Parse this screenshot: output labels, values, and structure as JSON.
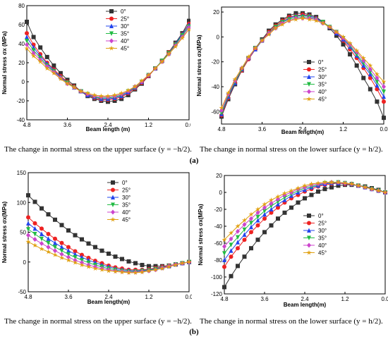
{
  "captions": {
    "row_a_left": "The change in normal stress on the upper surface (y = −h/2).",
    "row_a_right": "The change in normal stress on the lower surface (y = h/2).",
    "row_a_label": "(a)",
    "row_b_left": "The change in normal stress on the upper surface (y = −h/2).",
    "row_b_right": "The change in normal stress on the lower surface (y = h/2).",
    "row_b_label": "(b)"
  },
  "colors": {
    "0°": "#333333",
    "25°": "#ee2222",
    "30°": "#2244ee",
    "35°": "#22bb44",
    "40°": "#cc44cc",
    "45°": "#e0a010"
  },
  "chart_data": [
    {
      "type": "line",
      "xlabel": "Beam length (m)",
      "ylabel": "Normal stress σx (MPa)",
      "xlim": [
        4.8,
        0.0
      ],
      "ylim": [
        -40,
        80
      ],
      "xticks": [
        "4.8",
        "3.6",
        "2.4",
        "1.2",
        "0.0"
      ],
      "yticks": [
        -40,
        -20,
        0,
        20,
        40,
        60,
        80
      ],
      "legend_position": "top-center",
      "x": [
        4.8,
        4.6,
        4.4,
        4.2,
        4.0,
        3.8,
        3.6,
        3.4,
        3.2,
        3.0,
        2.8,
        2.6,
        2.4,
        2.2,
        2.0,
        1.8,
        1.6,
        1.4,
        1.2,
        1.0,
        0.8,
        0.6,
        0.4,
        0.2,
        0.0
      ],
      "series": [
        {
          "name": "0°",
          "marker": "square",
          "values": [
            63,
            47,
            36,
            26,
            17,
            9,
            2,
            -4,
            -10,
            -15,
            -18,
            -20,
            -21,
            -20,
            -18,
            -14,
            -8,
            -2,
            6,
            14,
            22,
            31,
            41,
            51,
            64
          ]
        },
        {
          "name": "25°",
          "marker": "circle",
          "values": [
            51,
            39,
            29,
            20,
            13,
            6,
            0,
            -5,
            -10,
            -14,
            -17,
            -19,
            -19,
            -18,
            -16,
            -12,
            -7,
            -1,
            6,
            14,
            22,
            31,
            40,
            50,
            61
          ]
        },
        {
          "name": "30°",
          "marker": "triangle-up",
          "values": [
            47,
            36,
            27,
            19,
            12,
            5,
            -1,
            -6,
            -10,
            -14,
            -16,
            -18,
            -18,
            -17,
            -15,
            -11,
            -6,
            0,
            7,
            14,
            22,
            30,
            40,
            50,
            60
          ]
        },
        {
          "name": "35°",
          "marker": "triangle-down",
          "values": [
            43,
            33,
            25,
            17,
            11,
            4,
            -1,
            -6,
            -10,
            -13,
            -16,
            -17,
            -17,
            -16,
            -14,
            -10,
            -6,
            0,
            7,
            14,
            22,
            30,
            39,
            49,
            58
          ]
        },
        {
          "name": "40°",
          "marker": "diamond",
          "values": [
            39,
            30,
            23,
            16,
            10,
            4,
            -2,
            -6,
            -10,
            -13,
            -15,
            -16,
            -16,
            -15,
            -13,
            -10,
            -5,
            0,
            7,
            14,
            21,
            29,
            38,
            47,
            57
          ]
        },
        {
          "name": "45°",
          "marker": "star",
          "values": [
            35,
            27,
            21,
            14,
            9,
            3,
            -2,
            -6,
            -10,
            -12,
            -14,
            -15,
            -15,
            -14,
            -12,
            -9,
            -5,
            1,
            7,
            14,
            21,
            29,
            37,
            46,
            55
          ]
        }
      ]
    },
    {
      "type": "line",
      "xlabel": "Beam length(m)",
      "ylabel": "Normal stress σx(MPa)",
      "xlim": [
        4.8,
        0.0
      ],
      "ylim": [
        -70,
        24
      ],
      "xticks": [
        "4.8",
        "3.6",
        "2.4",
        "1.2",
        "0.0"
      ],
      "yticks": [
        -60,
        -40,
        -20,
        0,
        20
      ],
      "legend_position": "center",
      "x": [
        4.8,
        4.6,
        4.4,
        4.2,
        4.0,
        3.8,
        3.6,
        3.4,
        3.2,
        3.0,
        2.8,
        2.6,
        2.4,
        2.2,
        2.0,
        1.8,
        1.6,
        1.4,
        1.2,
        1.0,
        0.8,
        0.6,
        0.4,
        0.2,
        0.0
      ],
      "series": [
        {
          "name": "0°",
          "marker": "square",
          "values": [
            -64,
            -50,
            -38,
            -27,
            -17,
            -9,
            -2,
            5,
            10,
            14,
            17,
            19,
            19,
            18,
            16,
            12,
            7,
            1,
            -6,
            -14,
            -23,
            -33,
            -42,
            -52,
            -65
          ]
        },
        {
          "name": "25°",
          "marker": "circle",
          "values": [
            -63,
            -49,
            -37,
            -27,
            -18,
            -10,
            -3,
            4,
            9,
            13,
            16,
            17,
            18,
            17,
            15,
            12,
            8,
            3,
            -3,
            -10,
            -17,
            -25,
            -33,
            -42,
            -52
          ]
        },
        {
          "name": "30°",
          "marker": "triangle-up",
          "values": [
            -62,
            -48,
            -37,
            -26,
            -17,
            -10,
            -3,
            3,
            8,
            12,
            15,
            17,
            17,
            17,
            15,
            12,
            8,
            3,
            -2,
            -8,
            -15,
            -23,
            -30,
            -39,
            -48
          ]
        },
        {
          "name": "35°",
          "marker": "triangle-down",
          "values": [
            -61,
            -47,
            -36,
            -26,
            -17,
            -9,
            -3,
            3,
            8,
            12,
            14,
            16,
            16,
            16,
            14,
            12,
            8,
            4,
            -1,
            -7,
            -14,
            -21,
            -28,
            -36,
            -44
          ]
        },
        {
          "name": "40°",
          "marker": "diamond",
          "values": [
            -59,
            -46,
            -35,
            -25,
            -17,
            -9,
            -3,
            3,
            7,
            11,
            13,
            15,
            15,
            15,
            14,
            11,
            8,
            4,
            -1,
            -6,
            -12,
            -19,
            -26,
            -33,
            -40
          ]
        },
        {
          "name": "45°",
          "marker": "star",
          "values": [
            -57,
            -45,
            -34,
            -25,
            -16,
            -9,
            -3,
            2,
            7,
            10,
            13,
            14,
            15,
            14,
            13,
            11,
            8,
            4,
            0,
            -5,
            -11,
            -17,
            -23,
            -30,
            -36
          ]
        }
      ]
    },
    {
      "type": "line",
      "xlabel": "Beam length(m)",
      "ylabel": "Normal stress σx(MPa)",
      "xlim": [
        4.8,
        0.0
      ],
      "ylim": [
        -50,
        150
      ],
      "xticks": [
        "4.8",
        "3.6",
        "2.4",
        "1.2",
        "0.0"
      ],
      "yticks": [
        -50,
        0,
        50,
        100,
        150
      ],
      "legend_position": "top-center",
      "x": [
        4.8,
        4.6,
        4.4,
        4.2,
        4.0,
        3.8,
        3.6,
        3.4,
        3.2,
        3.0,
        2.8,
        2.6,
        2.4,
        2.2,
        2.0,
        1.8,
        1.6,
        1.4,
        1.2,
        1.0,
        0.8,
        0.6,
        0.4,
        0.2,
        0.0
      ],
      "series": [
        {
          "name": "0°",
          "marker": "square",
          "values": [
            112,
            101,
            90,
            80,
            71,
            62,
            53,
            45,
            38,
            31,
            25,
            19,
            14,
            9,
            5,
            1,
            -2,
            -5,
            -7,
            -7,
            -7,
            -6,
            -4,
            -2,
            0
          ]
        },
        {
          "name": "25°",
          "marker": "circle",
          "values": [
            75,
            65,
            56,
            47,
            39,
            32,
            25,
            18,
            12,
            7,
            2,
            -2,
            -6,
            -9,
            -11,
            -13,
            -13,
            -13,
            -12,
            -10,
            -8,
            -6,
            -4,
            -2,
            0
          ]
        },
        {
          "name": "30°",
          "marker": "triangle-up",
          "values": [
            65,
            56,
            47,
            39,
            32,
            25,
            19,
            13,
            8,
            3,
            -1,
            -5,
            -8,
            -11,
            -13,
            -14,
            -15,
            -14,
            -13,
            -11,
            -9,
            -7,
            -4,
            -2,
            0
          ]
        },
        {
          "name": "35°",
          "marker": "triangle-down",
          "values": [
            55,
            47,
            39,
            32,
            25,
            19,
            13,
            8,
            3,
            -1,
            -5,
            -8,
            -11,
            -13,
            -15,
            -16,
            -16,
            -15,
            -14,
            -12,
            -10,
            -7,
            -4,
            -2,
            0
          ]
        },
        {
          "name": "40°",
          "marker": "diamond",
          "values": [
            45,
            38,
            31,
            25,
            19,
            13,
            8,
            3,
            -1,
            -5,
            -8,
            -11,
            -13,
            -15,
            -16,
            -17,
            -17,
            -16,
            -15,
            -13,
            -10,
            -7,
            -4,
            -2,
            0
          ]
        },
        {
          "name": "45°",
          "marker": "star",
          "values": [
            34,
            28,
            22,
            17,
            12,
            7,
            3,
            -1,
            -5,
            -8,
            -11,
            -13,
            -15,
            -16,
            -17,
            -18,
            -18,
            -17,
            -15,
            -13,
            -11,
            -8,
            -5,
            -2,
            0
          ]
        }
      ]
    },
    {
      "type": "line",
      "xlabel": "Beam length(m)",
      "ylabel": "Normal stress σx(MPa)",
      "xlim": [
        4.8,
        0.0
      ],
      "ylim": [
        -120,
        20
      ],
      "xticks": [
        "4.8",
        "3.6",
        "2.4",
        "1.2",
        "0.0"
      ],
      "yticks": [
        -120,
        -100,
        -80,
        -60,
        -40,
        -20,
        0,
        20
      ],
      "legend_position": "center",
      "x": [
        4.8,
        4.6,
        4.4,
        4.2,
        4.0,
        3.8,
        3.6,
        3.4,
        3.2,
        3.0,
        2.8,
        2.6,
        2.4,
        2.2,
        2.0,
        1.8,
        1.6,
        1.4,
        1.2,
        1.0,
        0.8,
        0.6,
        0.4,
        0.2,
        0.0
      ],
      "series": [
        {
          "name": "0°",
          "marker": "square",
          "values": [
            -112,
            -99,
            -87,
            -76,
            -66,
            -56,
            -47,
            -39,
            -31,
            -24,
            -18,
            -12,
            -7,
            -3,
            1,
            4,
            6,
            8,
            9,
            9,
            8,
            7,
            5,
            3,
            0
          ]
        },
        {
          "name": "25°",
          "marker": "circle",
          "values": [
            -88,
            -76,
            -66,
            -56,
            -47,
            -39,
            -31,
            -24,
            -18,
            -12,
            -7,
            -3,
            1,
            4,
            7,
            9,
            10,
            11,
            10,
            10,
            8,
            6,
            4,
            2,
            0
          ]
        },
        {
          "name": "30°",
          "marker": "triangle-up",
          "values": [
            -80,
            -69,
            -59,
            -50,
            -41,
            -33,
            -26,
            -20,
            -14,
            -9,
            -4,
            0,
            3,
            6,
            8,
            10,
            11,
            11,
            11,
            10,
            8,
            6,
            4,
            2,
            0
          ]
        },
        {
          "name": "35°",
          "marker": "triangle-down",
          "values": [
            -72,
            -62,
            -53,
            -44,
            -36,
            -29,
            -22,
            -16,
            -11,
            -6,
            -2,
            2,
            5,
            7,
            9,
            11,
            11,
            12,
            11,
            10,
            8,
            6,
            4,
            2,
            0
          ]
        },
        {
          "name": "40°",
          "marker": "diamond",
          "values": [
            -64,
            -55,
            -46,
            -38,
            -31,
            -24,
            -18,
            -13,
            -8,
            -3,
            0,
            4,
            6,
            9,
            10,
            11,
            12,
            12,
            11,
            10,
            8,
            6,
            4,
            2,
            0
          ]
        },
        {
          "name": "45°",
          "marker": "star",
          "values": [
            -56,
            -48,
            -40,
            -33,
            -26,
            -20,
            -14,
            -9,
            -5,
            -1,
            2,
            5,
            8,
            10,
            11,
            12,
            12,
            12,
            11,
            10,
            8,
            6,
            4,
            2,
            0
          ]
        }
      ]
    }
  ]
}
